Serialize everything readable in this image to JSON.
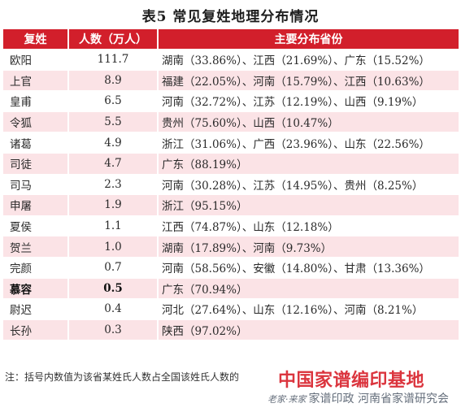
{
  "title": "表5  常见复姓地理分布情况",
  "table": {
    "headers": [
      "复姓",
      "人数（万人）",
      "主要分布省份"
    ],
    "rows": [
      [
        "欧阳",
        "111.7",
        "湖南（33.86%）、江西（21.69%）、广东（15.52%）"
      ],
      [
        "上官",
        "8.9",
        "福建（22.05%）、河南（15.79%）、江西（10.63%）"
      ],
      [
        "皇甫",
        "6.5",
        "河南（32.72%）、江苏（12.19%）、山西（9.19%）"
      ],
      [
        "令狐",
        "5.5",
        "贵州（75.60%）、山西（10.47%）"
      ],
      [
        "诸葛",
        "4.9",
        "浙江（31.06%）、广西（23.96%）、山东（22.56%）"
      ],
      [
        "司徒",
        "4.7",
        "广东（88.19%）"
      ],
      [
        "司马",
        "2.3",
        "河南（30.28%）、江苏（14.95%）、贵州（8.25%）"
      ],
      [
        "申屠",
        "1.9",
        "浙江（95.15%）"
      ],
      [
        "夏侯",
        "1.1",
        "江西（74.87%）、山东（12.18%）"
      ],
      [
        "贺兰",
        "1.0",
        "湖南（17.89%）、河南（9.73%）"
      ],
      [
        "完颜",
        "0.7",
        "河南（58.56%）、安徽（14.80%）、甘肃（13.36%）"
      ],
      [
        "慕容",
        "0.5",
        "广东（70.94%）"
      ],
      [
        "尉迟",
        "0.4",
        "河北（27.64%）、山东（12.16%）、河南（8.21%）"
      ],
      [
        "长孙",
        "0.3",
        "陕西（97.02%）"
      ]
    ],
    "highlighted_row": 11
  },
  "note": "注：括号内数值为该省某姓氏人数占全国该姓氏人数的",
  "watermark": {
    "line1": "中国家谱编印基地",
    "slogan": "老家·来家",
    "line2": "家谱印政 河南省家谱研究会"
  },
  "colors": {
    "header_bg": "#d21f2b",
    "row_alt_bg": "#fbe3e6",
    "watermark_red": "#d8242e"
  }
}
